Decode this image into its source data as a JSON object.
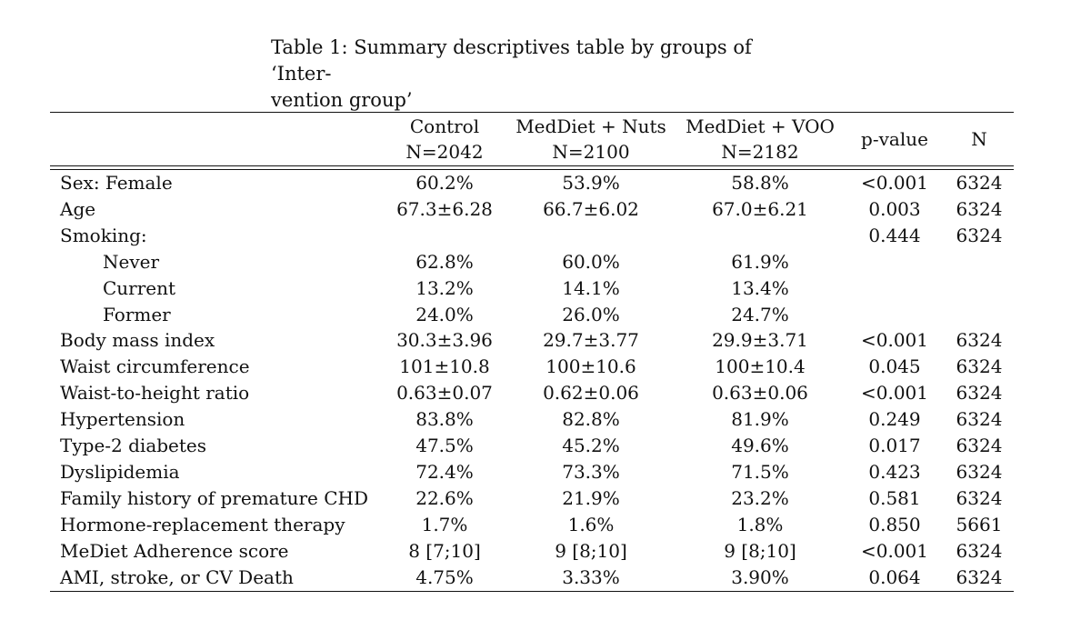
{
  "caption_line1": "Table 1: Summary descriptives table by groups of ‘Inter-",
  "caption_line2": "vention group’",
  "header": {
    "col1_name": "Control",
    "col1_n": "N=2042",
    "col2_name": "MedDiet + Nuts",
    "col2_n": "N=2100",
    "col3_name": "MedDiet + VOO",
    "col3_n": "N=2182",
    "col4": "p-value",
    "col5": "N"
  },
  "rows": [
    {
      "label": "Sex: Female",
      "control": "60.2%",
      "nuts": "53.9%",
      "voo": "58.8%",
      "p": "<0.001",
      "n": "6324"
    },
    {
      "label": "Age",
      "control": "67.3±6.28",
      "nuts": "66.7±6.02",
      "voo": "67.0±6.21",
      "p": "0.003",
      "n": "6324"
    },
    {
      "label": "Smoking:",
      "control": "",
      "nuts": "",
      "voo": "",
      "p": "0.444",
      "n": "6324"
    },
    {
      "label": "Never",
      "control": "62.8%",
      "nuts": "60.0%",
      "voo": "61.9%",
      "p": "",
      "n": ""
    },
    {
      "label": "Current",
      "control": "13.2%",
      "nuts": "14.1%",
      "voo": "13.4%",
      "p": "",
      "n": ""
    },
    {
      "label": "Former",
      "control": "24.0%",
      "nuts": "26.0%",
      "voo": "24.7%",
      "p": "",
      "n": ""
    },
    {
      "label": "Body mass index",
      "control": "30.3±3.96",
      "nuts": "29.7±3.77",
      "voo": "29.9±3.71",
      "p": "<0.001",
      "n": "6324"
    },
    {
      "label": "Waist circumference",
      "control": "101±10.8",
      "nuts": "100±10.6",
      "voo": "100±10.4",
      "p": "0.045",
      "n": "6324"
    },
    {
      "label": "Waist-to-height ratio",
      "control": "0.63±0.07",
      "nuts": "0.62±0.06",
      "voo": "0.63±0.06",
      "p": "<0.001",
      "n": "6324"
    },
    {
      "label": "Hypertension",
      "control": "83.8%",
      "nuts": "82.8%",
      "voo": "81.9%",
      "p": "0.249",
      "n": "6324"
    },
    {
      "label": "Type-2 diabetes",
      "control": "47.5%",
      "nuts": "45.2%",
      "voo": "49.6%",
      "p": "0.017",
      "n": "6324"
    },
    {
      "label": "Dyslipidemia",
      "control": "72.4%",
      "nuts": "73.3%",
      "voo": "71.5%",
      "p": "0.423",
      "n": "6324"
    },
    {
      "label": "Family history of premature CHD",
      "control": "22.6%",
      "nuts": "21.9%",
      "voo": "23.2%",
      "p": "0.581",
      "n": "6324"
    },
    {
      "label": "Hormone-replacement therapy",
      "control": "1.7%",
      "nuts": "1.6%",
      "voo": "1.8%",
      "p": "0.850",
      "n": "5661"
    },
    {
      "label": "MeDiet Adherence score",
      "control": "8 [7;10]",
      "nuts": "9 [8;10]",
      "voo": "9 [8;10]",
      "p": "<0.001",
      "n": "6324"
    },
    {
      "label": "AMI, stroke, or CV Death",
      "control": "4.75%",
      "nuts": "3.33%",
      "voo": "3.90%",
      "p": "0.064",
      "n": "6324"
    }
  ]
}
